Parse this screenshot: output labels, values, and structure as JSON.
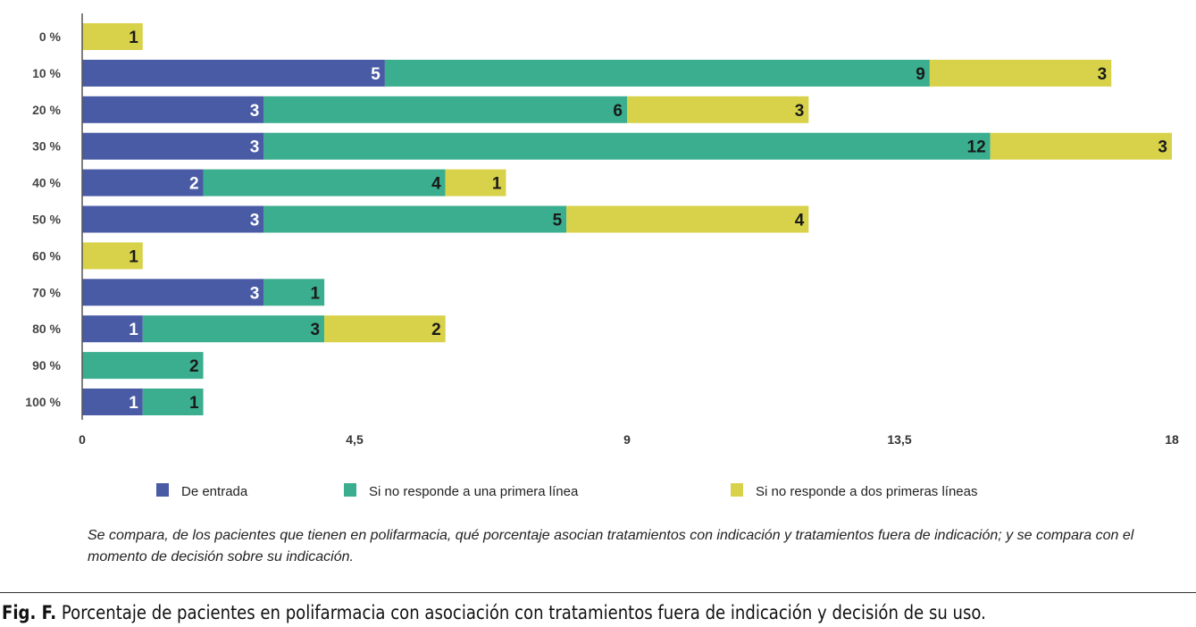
{
  "chart_data": {
    "type": "bar",
    "orientation": "horizontal",
    "stacked": true,
    "categories": [
      "0 %",
      "10 %",
      "20 %",
      "30 %",
      "40 %",
      "50 %",
      "60 %",
      "70 %",
      "80 %",
      "90 %",
      "100 %"
    ],
    "series": [
      {
        "name": "De entrada",
        "color": "#4a5ba6",
        "values": [
          0,
          5,
          3,
          3,
          2,
          3,
          0,
          3,
          1,
          0,
          1
        ]
      },
      {
        "name": "Si no responde a una primera línea",
        "color": "#3aae8e",
        "values": [
          0,
          9,
          6,
          12,
          4,
          5,
          0,
          1,
          3,
          2,
          1
        ]
      },
      {
        "name": "Si no responde a dos primeras líneas",
        "color": "#d8d24a",
        "values": [
          1,
          3,
          3,
          3,
          1,
          4,
          1,
          0,
          2,
          0,
          0
        ]
      }
    ],
    "xlim": [
      0,
      18
    ],
    "xticks": [
      "0",
      "4,5",
      "9",
      "13,5",
      "18"
    ],
    "xtick_values": [
      0,
      4.5,
      9,
      13.5,
      18
    ],
    "grid": false,
    "legend_position": "bottom",
    "data_labels": true
  },
  "note": "Se compara, de los pacientes que tienen en polifarmacia, qué porcentaje asocian tratamientos con indicación y tratamientos fuera de indicación; y se compara con el momento de decisión sobre su indicación.",
  "figure_caption": {
    "label": "Fig. F.",
    "text": " Porcentaje de pacientes en polifarmacia con asociación con tratamientos fuera de indicación y decisión de su uso."
  }
}
